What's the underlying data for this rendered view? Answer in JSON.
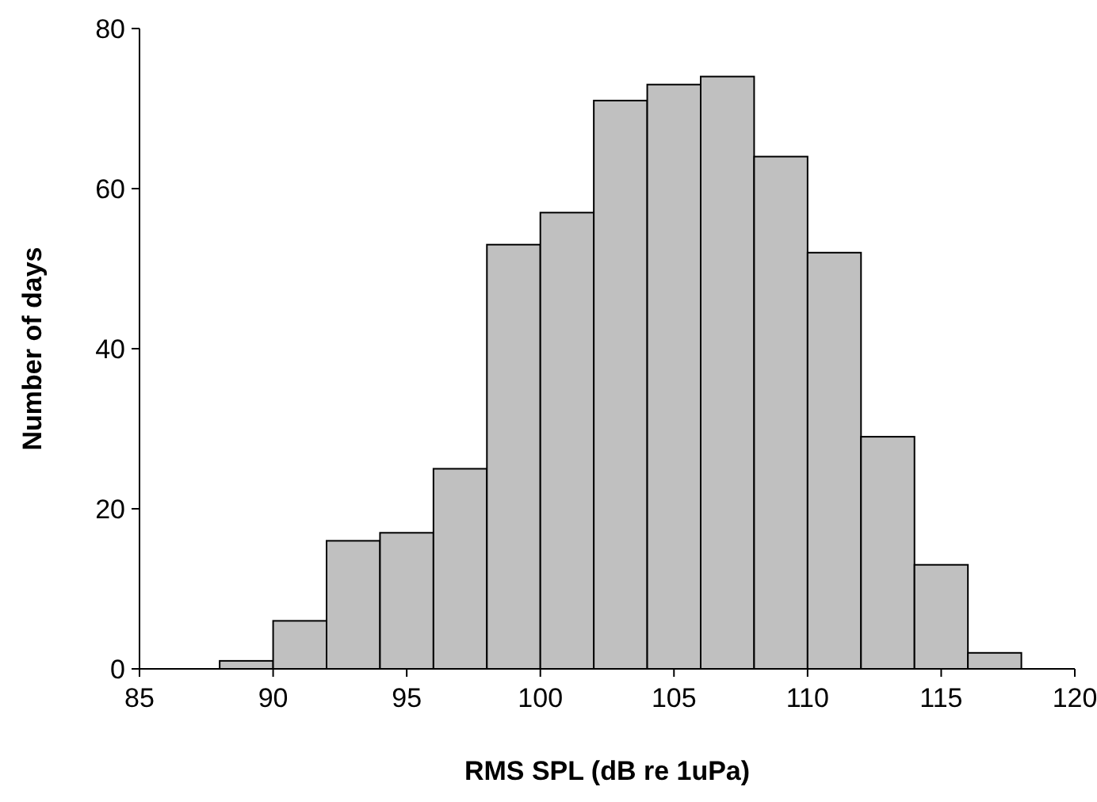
{
  "chart_data": {
    "type": "histogram",
    "xlabel": "RMS SPL (dB re 1uPa)",
    "ylabel": "Number of days",
    "bins": [
      88,
      90,
      92,
      94,
      96,
      98,
      100,
      102,
      104,
      106,
      108,
      110,
      112,
      114,
      116,
      118
    ],
    "values": [
      1,
      6,
      16,
      17,
      25,
      53,
      57,
      71,
      73,
      74,
      64,
      52,
      29,
      13,
      2
    ],
    "color": "#c0c0c0",
    "xlim": [
      85,
      120
    ],
    "xticks": [
      85,
      90,
      95,
      100,
      105,
      110,
      115,
      120
    ],
    "ylim": [
      0,
      80
    ],
    "yticks": [
      0,
      20,
      40,
      60,
      80
    ],
    "grid": false
  }
}
